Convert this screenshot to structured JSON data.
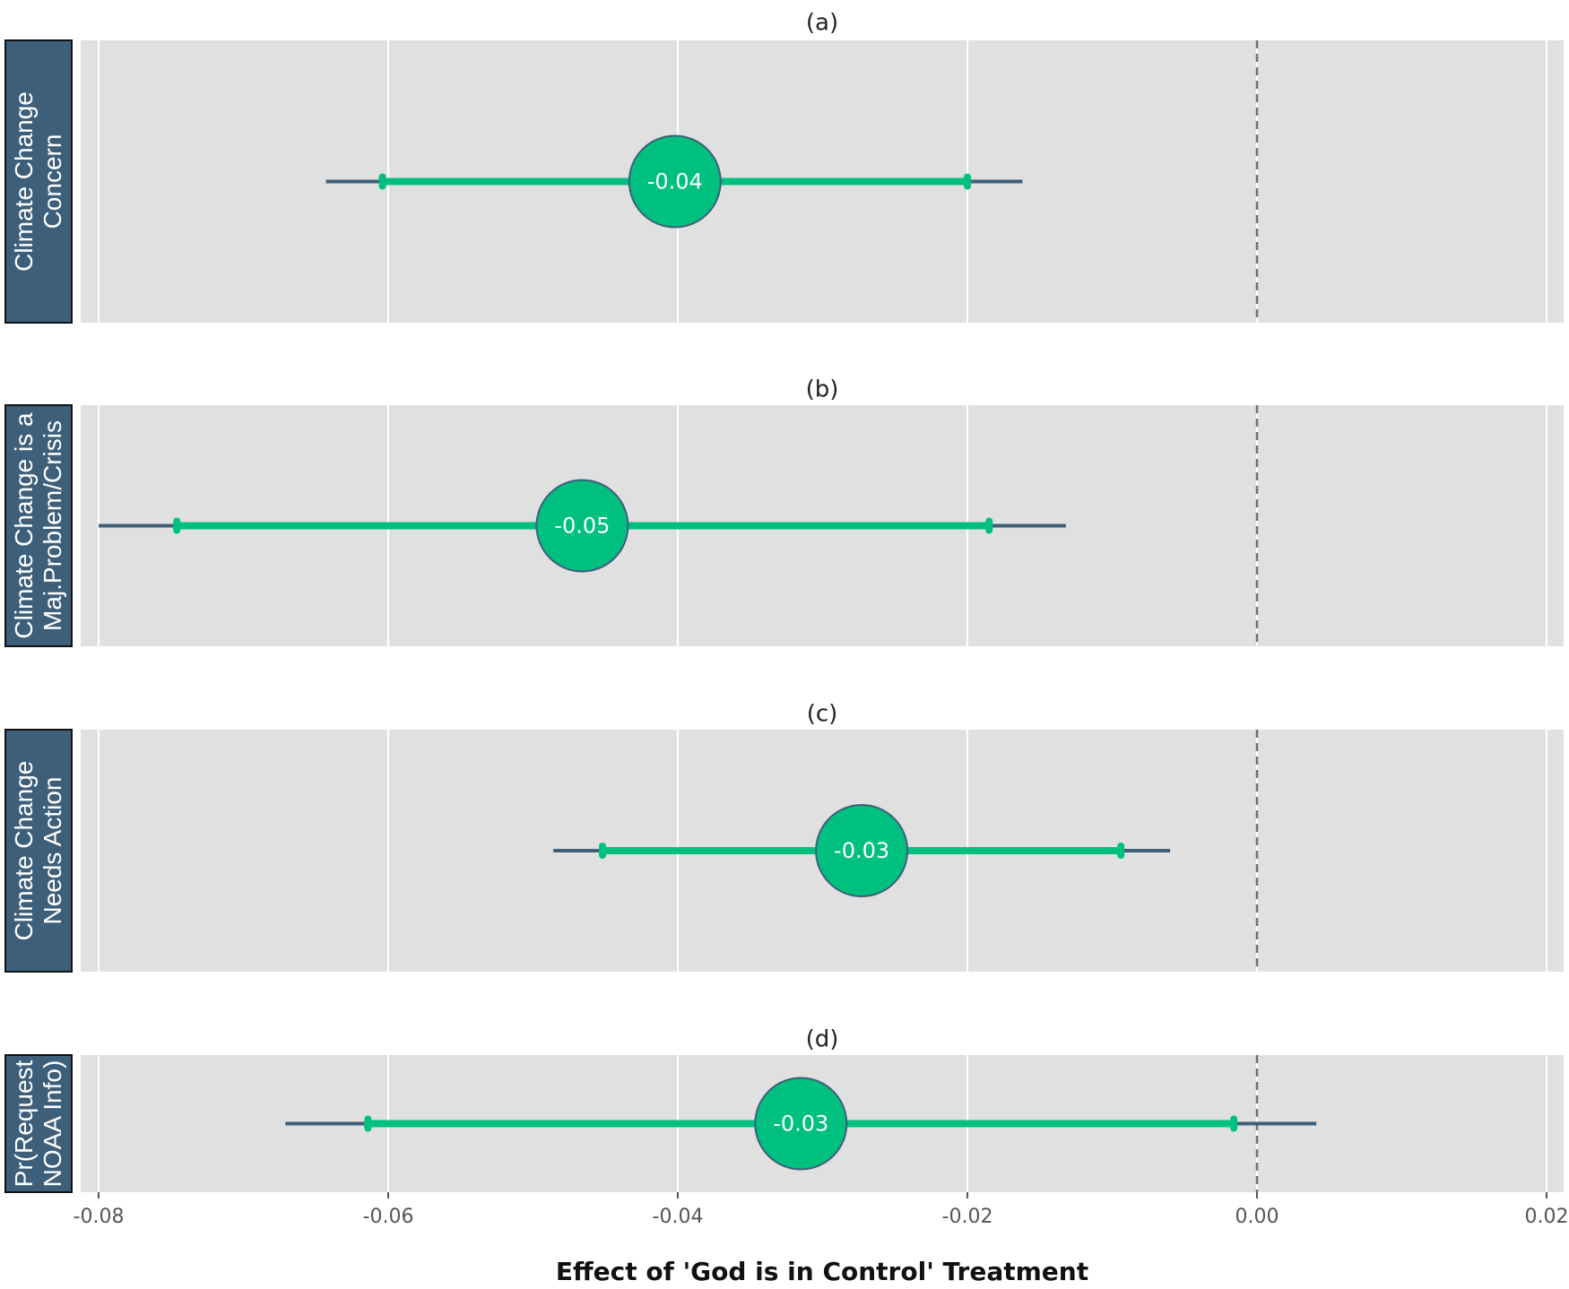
{
  "chart_data": {
    "type": "forest",
    "xlabel": "Effect of 'God is in Control' Treatment",
    "xlim": [
      -0.08,
      0.02
    ],
    "x_ticks": [
      "-0.08",
      "-0.06",
      "-0.04",
      "-0.02",
      "0.00",
      "0.02"
    ],
    "reference_line": 0,
    "grid": true,
    "colors": {
      "panel_bg": "#e0e0e0",
      "strip_bg": "#3d5f7a",
      "point": "#00c07f",
      "inner_ci": "#00c07f",
      "outer_ci": "#3d5f7a",
      "reference": "#707070"
    },
    "panels": [
      {
        "tag": "(a)",
        "strip_lines": [
          "Climate Change",
          "Concern"
        ],
        "estimate": -0.0402,
        "label": "-0.04",
        "ci_inner": [
          -0.0604,
          -0.02
        ],
        "ci_outer": [
          -0.0643,
          -0.0162
        ]
      },
      {
        "tag": "(b)",
        "strip_lines": [
          "Climate Change is a",
          "Maj.Problem/Crisis"
        ],
        "estimate": -0.0466,
        "label": "-0.05",
        "ci_inner": [
          -0.0746,
          -0.0185
        ],
        "ci_outer": [
          -0.08,
          -0.0132
        ]
      },
      {
        "tag": "(c)",
        "strip_lines": [
          "Climate Change",
          "Needs Action"
        ],
        "estimate": -0.0273,
        "label": "-0.03",
        "ci_inner": [
          -0.0452,
          -0.0094
        ],
        "ci_outer": [
          -0.0486,
          -0.006
        ]
      },
      {
        "tag": "(d)",
        "strip_lines": [
          "Pr(Request",
          "NOAA Info)"
        ],
        "estimate": -0.0315,
        "label": "-0.03",
        "ci_inner": [
          -0.0614,
          -0.0016
        ],
        "ci_outer": [
          -0.0671,
          0.0041
        ]
      }
    ]
  }
}
